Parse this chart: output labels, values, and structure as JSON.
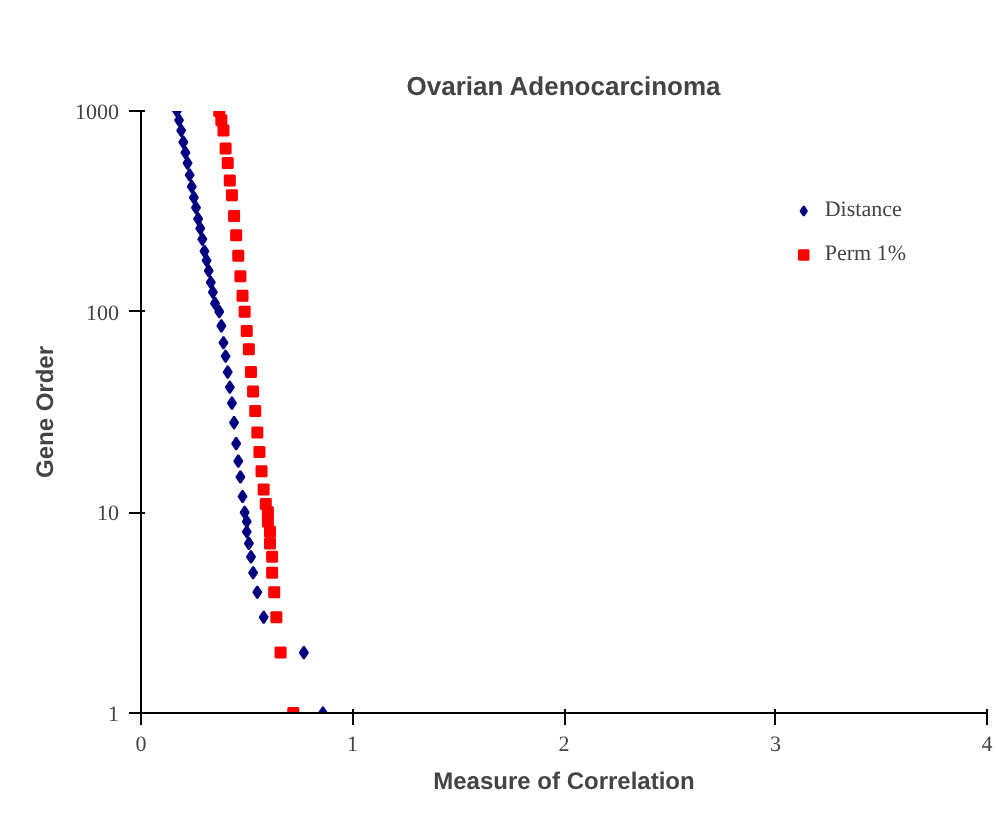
{
  "chart_data": {
    "type": "scatter",
    "title": "Ovarian Adenocarcinoma",
    "xlabel": "Measure of Correlation",
    "ylabel": "Gene Order",
    "xlim": [
      0,
      4
    ],
    "xticks": [
      0,
      1,
      2,
      3,
      4
    ],
    "ylim": [
      1,
      1000
    ],
    "yticks": [
      1,
      10,
      100,
      1000
    ],
    "log": "y",
    "grid": false,
    "legend": "top right",
    "series": [
      {
        "name": "Distance",
        "color": "#000080",
        "marker": "diamond",
        "x": [
          0.17,
          0.18,
          0.19,
          0.2,
          0.21,
          0.22,
          0.23,
          0.24,
          0.25,
          0.26,
          0.27,
          0.28,
          0.29,
          0.3,
          0.31,
          0.32,
          0.33,
          0.34,
          0.35,
          0.37,
          0.38,
          0.39,
          0.4,
          0.41,
          0.42,
          0.43,
          0.44,
          0.45,
          0.46,
          0.47,
          0.48,
          0.49,
          0.5,
          0.5,
          0.51,
          0.52,
          0.53,
          0.55,
          0.58,
          0.77,
          0.86
        ],
        "values": [
          1000,
          900,
          800,
          700,
          620,
          550,
          480,
          420,
          370,
          330,
          290,
          260,
          230,
          200,
          180,
          160,
          140,
          125,
          110,
          100,
          85,
          70,
          60,
          50,
          42,
          35,
          28,
          22,
          18,
          15,
          12,
          10,
          9,
          8,
          7,
          6,
          5,
          4,
          3,
          2,
          1
        ]
      },
      {
        "name": "Perm 1%",
        "color": "#ff0000",
        "marker": "square",
        "x": [
          0.37,
          0.38,
          0.39,
          0.4,
          0.41,
          0.42,
          0.43,
          0.44,
          0.45,
          0.46,
          0.47,
          0.48,
          0.49,
          0.5,
          0.51,
          0.52,
          0.53,
          0.54,
          0.55,
          0.56,
          0.57,
          0.58,
          0.59,
          0.6,
          0.6,
          0.61,
          0.61,
          0.62,
          0.62,
          0.63,
          0.64,
          0.66,
          0.72
        ],
        "values": [
          1000,
          900,
          800,
          650,
          550,
          450,
          380,
          300,
          240,
          190,
          150,
          120,
          100,
          80,
          65,
          50,
          40,
          32,
          25,
          20,
          16,
          13,
          11,
          10,
          9,
          8,
          7,
          6,
          5,
          4,
          3,
          2,
          1
        ]
      }
    ]
  }
}
